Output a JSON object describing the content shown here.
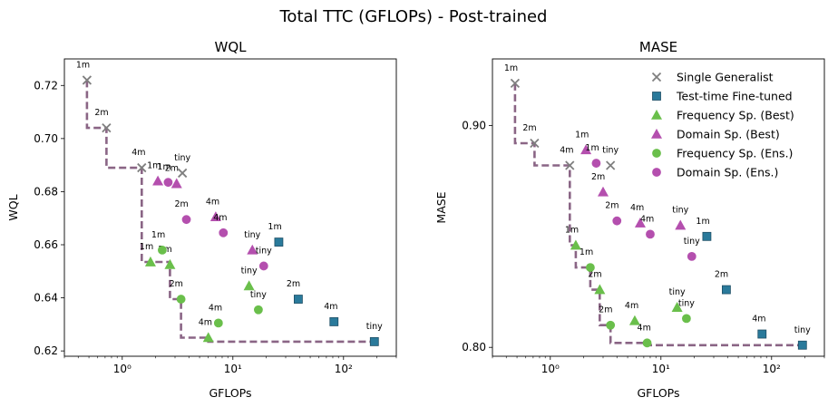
{
  "figure_title": "Total TTC (GFLOPs) - Post-trained",
  "colors": {
    "generalist": "#7f7f7f",
    "finetuned": "#2a7a9b",
    "freq": "#6abf4b",
    "domain": "#b44fae",
    "frontier": "#8a6585"
  },
  "chart_data": [
    {
      "type": "scatter",
      "title": "WQL",
      "xlabel": "GFLOPs",
      "ylabel": "WQL",
      "xscale": "log",
      "xlim": [
        0.3,
        300
      ],
      "ylim": [
        0.618,
        0.73
      ],
      "yticks": [
        0.62,
        0.64,
        0.66,
        0.68,
        0.7,
        0.72
      ],
      "ytick_labels": [
        "0.62",
        "0.64",
        "0.66",
        "0.68",
        "0.70",
        "0.72"
      ],
      "xticks": [
        1,
        10,
        100
      ],
      "xtick_labels": [
        "10⁰",
        "10¹",
        "10²"
      ],
      "series": [
        {
          "name": "Single Generalist",
          "key": "generalist",
          "marker": "x",
          "points": [
            {
              "x": 0.48,
              "y": 0.722,
              "label": "1m"
            },
            {
              "x": 0.72,
              "y": 0.704,
              "label": "2m"
            },
            {
              "x": 1.5,
              "y": 0.689,
              "label": "4m"
            },
            {
              "x": 3.5,
              "y": 0.687,
              "label": "tiny"
            }
          ]
        },
        {
          "name": "Test-time Fine-tuned",
          "key": "finetuned",
          "marker": "s",
          "points": [
            {
              "x": 26,
              "y": 0.661,
              "label": "1m"
            },
            {
              "x": 39,
              "y": 0.6395,
              "label": "2m"
            },
            {
              "x": 82,
              "y": 0.631,
              "label": "4m"
            },
            {
              "x": 190,
              "y": 0.6235,
              "label": "tiny"
            }
          ]
        },
        {
          "name": "Frequency Sp. (Best)",
          "key": "freq",
          "marker": "^",
          "points": [
            {
              "x": 1.8,
              "y": 0.6535,
              "label": "1m"
            },
            {
              "x": 2.7,
              "y": 0.6525,
              "label": "2m"
            },
            {
              "x": 6.0,
              "y": 0.625,
              "label": "4m"
            },
            {
              "x": 14,
              "y": 0.6445,
              "label": "tiny"
            }
          ]
        },
        {
          "name": "Domain Sp. (Best)",
          "key": "domain",
          "marker": "^",
          "points": [
            {
              "x": 2.1,
              "y": 0.684,
              "label": "1m"
            },
            {
              "x": 3.1,
              "y": 0.683,
              "label": "2m"
            },
            {
              "x": 7.0,
              "y": 0.6705,
              "label": "4m"
            },
            {
              "x": 15,
              "y": 0.658,
              "label": "tiny"
            }
          ]
        },
        {
          "name": "Frequency Sp. (Ens.)",
          "key": "freq",
          "marker": "o",
          "points": [
            {
              "x": 2.3,
              "y": 0.658,
              "label": "1m"
            },
            {
              "x": 3.4,
              "y": 0.6395,
              "label": "2m"
            },
            {
              "x": 7.4,
              "y": 0.6305,
              "label": "4m"
            },
            {
              "x": 17,
              "y": 0.6355,
              "label": "tiny"
            }
          ]
        },
        {
          "name": "Domain Sp. (Ens.)",
          "key": "domain",
          "marker": "o",
          "points": [
            {
              "x": 2.6,
              "y": 0.6835,
              "label": "1m"
            },
            {
              "x": 3.8,
              "y": 0.6695,
              "label": "2m"
            },
            {
              "x": 8.2,
              "y": 0.6645,
              "label": "4m"
            },
            {
              "x": 19,
              "y": 0.652,
              "label": "tiny"
            }
          ]
        }
      ],
      "frontier": [
        [
          0.48,
          0.722
        ],
        [
          0.48,
          0.704
        ],
        [
          0.72,
          0.704
        ],
        [
          0.72,
          0.689
        ],
        [
          1.5,
          0.689
        ],
        [
          1.5,
          0.6535
        ],
        [
          2.7,
          0.6535
        ],
        [
          2.7,
          0.6395
        ],
        [
          3.4,
          0.6395
        ],
        [
          3.4,
          0.625
        ],
        [
          6.0,
          0.625
        ],
        [
          6.0,
          0.6235
        ],
        [
          190,
          0.6235
        ]
      ]
    },
    {
      "type": "scatter",
      "title": "MASE",
      "xlabel": "GFLOPs",
      "ylabel": "MASE",
      "xscale": "log",
      "xlim": [
        0.3,
        300
      ],
      "ylim": [
        0.796,
        0.93
      ],
      "yticks": [
        0.8,
        0.9
      ],
      "ytick_labels": [
        "0.80",
        "0.90"
      ],
      "xticks": [
        1,
        10,
        100
      ],
      "xtick_labels": [
        "10⁰",
        "10¹",
        "10²"
      ],
      "series": [
        {
          "name": "Single Generalist",
          "key": "generalist",
          "marker": "x",
          "points": [
            {
              "x": 0.48,
              "y": 0.919,
              "label": "1m"
            },
            {
              "x": 0.72,
              "y": 0.892,
              "label": "2m"
            },
            {
              "x": 1.5,
              "y": 0.882,
              "label": "4m"
            },
            {
              "x": 3.5,
              "y": 0.882,
              "label": "tiny"
            }
          ]
        },
        {
          "name": "Test-time Fine-tuned",
          "key": "finetuned",
          "marker": "s",
          "points": [
            {
              "x": 26,
              "y": 0.85,
              "label": "1m"
            },
            {
              "x": 39,
              "y": 0.826,
              "label": "2m"
            },
            {
              "x": 82,
              "y": 0.806,
              "label": "4m"
            },
            {
              "x": 190,
              "y": 0.801,
              "label": "tiny"
            }
          ]
        },
        {
          "name": "Frequency Sp. (Best)",
          "key": "freq",
          "marker": "^",
          "points": [
            {
              "x": 1.7,
              "y": 0.846,
              "label": "1m"
            },
            {
              "x": 2.8,
              "y": 0.826,
              "label": "2m"
            },
            {
              "x": 5.8,
              "y": 0.812,
              "label": "4m"
            },
            {
              "x": 14,
              "y": 0.818,
              "label": "tiny"
            }
          ]
        },
        {
          "name": "Domain Sp. (Best)",
          "key": "domain",
          "marker": "^",
          "points": [
            {
              "x": 2.1,
              "y": 0.889,
              "label": "1m"
            },
            {
              "x": 3.0,
              "y": 0.87,
              "label": "2m"
            },
            {
              "x": 6.5,
              "y": 0.856,
              "label": "4m"
            },
            {
              "x": 15,
              "y": 0.855,
              "label": "tiny"
            }
          ]
        },
        {
          "name": "Frequency Sp. (Ens.)",
          "key": "freq",
          "marker": "o",
          "points": [
            {
              "x": 2.3,
              "y": 0.836,
              "label": "1m"
            },
            {
              "x": 3.5,
              "y": 0.81,
              "label": "2m"
            },
            {
              "x": 7.5,
              "y": 0.802,
              "label": "4m"
            },
            {
              "x": 17,
              "y": 0.813,
              "label": "tiny"
            }
          ]
        },
        {
          "name": "Domain Sp. (Ens.)",
          "key": "domain",
          "marker": "o",
          "points": [
            {
              "x": 2.6,
              "y": 0.883,
              "label": "1m"
            },
            {
              "x": 4.0,
              "y": 0.857,
              "label": "2m"
            },
            {
              "x": 8.0,
              "y": 0.851,
              "label": "4m"
            },
            {
              "x": 19,
              "y": 0.841,
              "label": "tiny"
            }
          ]
        }
      ],
      "frontier": [
        [
          0.48,
          0.919
        ],
        [
          0.48,
          0.892
        ],
        [
          0.72,
          0.892
        ],
        [
          0.72,
          0.882
        ],
        [
          1.5,
          0.882
        ],
        [
          1.5,
          0.846
        ],
        [
          1.7,
          0.846
        ],
        [
          1.7,
          0.836
        ],
        [
          2.3,
          0.836
        ],
        [
          2.3,
          0.826
        ],
        [
          2.8,
          0.826
        ],
        [
          2.8,
          0.81
        ],
        [
          3.5,
          0.81
        ],
        [
          3.5,
          0.802
        ],
        [
          7.5,
          0.802
        ],
        [
          7.5,
          0.801
        ],
        [
          190,
          0.801
        ]
      ]
    }
  ],
  "legend": {
    "placement": "top-right",
    "entries": [
      {
        "label": "Single Generalist",
        "key": "generalist",
        "marker": "x"
      },
      {
        "label": "Test-time Fine-tuned",
        "key": "finetuned",
        "marker": "s"
      },
      {
        "label": "Frequency Sp. (Best)",
        "key": "freq",
        "marker": "^"
      },
      {
        "label": "Domain Sp. (Best)",
        "key": "domain",
        "marker": "^"
      },
      {
        "label": "Frequency Sp. (Ens.)",
        "key": "freq",
        "marker": "o"
      },
      {
        "label": "Domain Sp. (Ens.)",
        "key": "domain",
        "marker": "o"
      }
    ]
  }
}
